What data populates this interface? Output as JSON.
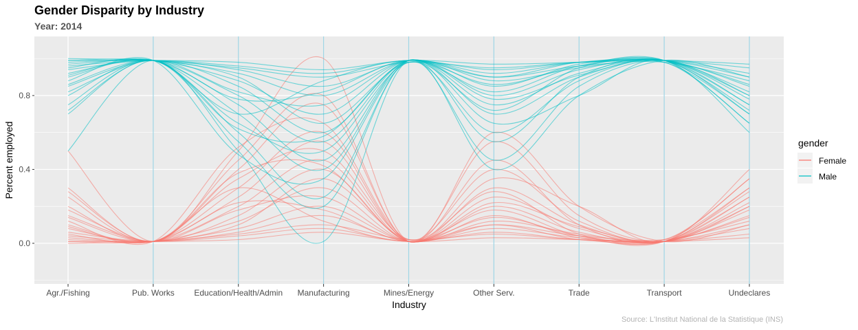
{
  "chart_data": {
    "type": "line",
    "title": "Gender Disparity by Industry",
    "subtitle": "Year: 2014",
    "xlabel": "Industry",
    "ylabel": "Percent employed",
    "caption": "Source: L'Institut National de la Statistique (INS)",
    "categories": [
      "Agr./Fishing",
      "Pub. Works",
      "Education/Health/Admin",
      "Manufacturing",
      "Mines/Energy",
      "Other Serv.",
      "Trade",
      "Transport",
      "Undeclares"
    ],
    "ylim": [
      -0.22,
      1.12
    ],
    "yticks": [
      0.0,
      0.4,
      0.8
    ],
    "grid": true,
    "legend": {
      "title": "gender",
      "position": "right",
      "entries": [
        {
          "name": "Female",
          "color": "#F8766D"
        },
        {
          "name": "Male",
          "color": "#00BFC4"
        }
      ]
    },
    "series": [
      {
        "name": "Female",
        "values": [
          0.5,
          0.01,
          0.5,
          1.0,
          0.01,
          0.6,
          0.2,
          0.01,
          0.1
        ]
      },
      {
        "name": "Female",
        "values": [
          0.3,
          0.01,
          0.45,
          0.8,
          0.01,
          0.55,
          0.15,
          0.01,
          0.2
        ]
      },
      {
        "name": "Female",
        "values": [
          0.25,
          0.01,
          0.4,
          0.75,
          0.01,
          0.45,
          0.1,
          0.01,
          0.3
        ]
      },
      {
        "name": "Female",
        "values": [
          0.12,
          0.01,
          0.52,
          0.65,
          0.02,
          0.4,
          0.12,
          0.02,
          0.35
        ]
      },
      {
        "name": "Female",
        "values": [
          0.1,
          0.01,
          0.3,
          0.6,
          0.01,
          0.35,
          0.2,
          0.01,
          0.4
        ]
      },
      {
        "name": "Female",
        "values": [
          0.05,
          0.01,
          0.25,
          0.55,
          0.01,
          0.3,
          0.1,
          0.01,
          0.25
        ]
      },
      {
        "name": "Female",
        "values": [
          0.2,
          0.01,
          0.35,
          0.5,
          0.02,
          0.28,
          0.05,
          0.01,
          0.15
        ]
      },
      {
        "name": "Female",
        "values": [
          0.08,
          0.01,
          0.2,
          0.45,
          0.01,
          0.25,
          0.08,
          0.02,
          0.3
        ]
      },
      {
        "name": "Female",
        "values": [
          0.15,
          0.01,
          0.15,
          0.4,
          0.01,
          0.2,
          0.06,
          0.01,
          0.2
        ]
      },
      {
        "name": "Female",
        "values": [
          0.03,
          0.01,
          0.1,
          0.35,
          0.02,
          0.18,
          0.04,
          0.01,
          0.35
        ]
      },
      {
        "name": "Female",
        "values": [
          0.01,
          0.01,
          0.12,
          0.3,
          0.01,
          0.15,
          0.03,
          0.01,
          0.25
        ]
      },
      {
        "name": "Female",
        "values": [
          0.18,
          0.01,
          0.18,
          0.25,
          0.01,
          0.12,
          0.05,
          0.01,
          0.18
        ]
      },
      {
        "name": "Female",
        "values": [
          0.02,
          0.01,
          0.08,
          0.2,
          0.01,
          0.1,
          0.04,
          0.02,
          0.12
        ]
      },
      {
        "name": "Female",
        "values": [
          0.06,
          0.01,
          0.06,
          0.15,
          0.01,
          0.08,
          0.03,
          0.01,
          0.1
        ]
      },
      {
        "name": "Female",
        "values": [
          0.0,
          0.01,
          0.05,
          0.1,
          0.02,
          0.05,
          0.02,
          0.01,
          0.08
        ]
      },
      {
        "name": "Female",
        "values": [
          0.04,
          0.01,
          0.04,
          0.08,
          0.01,
          0.06,
          0.02,
          0.01,
          0.05
        ]
      },
      {
        "name": "Female",
        "values": [
          0.09,
          0.01,
          0.3,
          0.12,
          0.01,
          0.1,
          0.02,
          0.01,
          0.14
        ]
      },
      {
        "name": "Female",
        "values": [
          0.14,
          0.01,
          0.22,
          0.18,
          0.01,
          0.14,
          0.04,
          0.01,
          0.28
        ]
      },
      {
        "name": "Female",
        "values": [
          0.01,
          0.01,
          0.02,
          0.06,
          0.01,
          0.03,
          0.02,
          0.01,
          0.03
        ]
      },
      {
        "name": "Female",
        "values": [
          0.28,
          0.01,
          0.38,
          0.42,
          0.01,
          0.22,
          0.09,
          0.01,
          0.22
        ]
      },
      {
        "name": "Male",
        "values": [
          0.5,
          0.99,
          0.5,
          0.01,
          0.99,
          0.4,
          0.8,
          0.99,
          0.9
        ]
      },
      {
        "name": "Male",
        "values": [
          0.7,
          0.99,
          0.55,
          0.2,
          0.99,
          0.45,
          0.85,
          0.99,
          0.8
        ]
      },
      {
        "name": "Male",
        "values": [
          0.75,
          0.99,
          0.6,
          0.25,
          0.99,
          0.55,
          0.9,
          0.99,
          0.7
        ]
      },
      {
        "name": "Male",
        "values": [
          0.88,
          0.99,
          0.48,
          0.35,
          0.98,
          0.6,
          0.88,
          0.98,
          0.65
        ]
      },
      {
        "name": "Male",
        "values": [
          0.9,
          0.99,
          0.7,
          0.4,
          0.99,
          0.65,
          0.8,
          0.99,
          0.6
        ]
      },
      {
        "name": "Male",
        "values": [
          0.95,
          0.99,
          0.75,
          0.45,
          0.99,
          0.7,
          0.9,
          0.99,
          0.75
        ]
      },
      {
        "name": "Male",
        "values": [
          0.8,
          0.99,
          0.65,
          0.5,
          0.98,
          0.72,
          0.95,
          0.99,
          0.85
        ]
      },
      {
        "name": "Male",
        "values": [
          0.92,
          0.99,
          0.8,
          0.55,
          0.99,
          0.75,
          0.92,
          0.98,
          0.7
        ]
      },
      {
        "name": "Male",
        "values": [
          0.85,
          0.99,
          0.85,
          0.6,
          0.99,
          0.8,
          0.94,
          0.99,
          0.8
        ]
      },
      {
        "name": "Male",
        "values": [
          0.97,
          0.99,
          0.9,
          0.65,
          0.98,
          0.82,
          0.96,
          0.99,
          0.65
        ]
      },
      {
        "name": "Male",
        "values": [
          0.99,
          0.99,
          0.88,
          0.7,
          0.99,
          0.85,
          0.97,
          0.99,
          0.75
        ]
      },
      {
        "name": "Male",
        "values": [
          0.82,
          0.99,
          0.82,
          0.75,
          0.99,
          0.88,
          0.95,
          0.99,
          0.82
        ]
      },
      {
        "name": "Male",
        "values": [
          0.98,
          0.99,
          0.92,
          0.8,
          0.99,
          0.9,
          0.96,
          0.98,
          0.88
        ]
      },
      {
        "name": "Male",
        "values": [
          0.94,
          0.99,
          0.94,
          0.85,
          0.99,
          0.92,
          0.98,
          0.99,
          0.9
        ]
      },
      {
        "name": "Male",
        "values": [
          1.0,
          0.99,
          0.95,
          0.9,
          0.98,
          0.95,
          0.98,
          0.99,
          0.92
        ]
      },
      {
        "name": "Male",
        "values": [
          0.96,
          0.99,
          0.96,
          0.92,
          0.99,
          0.94,
          0.98,
          0.99,
          0.95
        ]
      },
      {
        "name": "Male",
        "values": [
          0.91,
          0.99,
          0.7,
          0.88,
          0.99,
          0.9,
          0.98,
          0.99,
          0.86
        ]
      },
      {
        "name": "Male",
        "values": [
          0.86,
          0.99,
          0.78,
          0.82,
          0.99,
          0.86,
          0.96,
          0.99,
          0.72
        ]
      },
      {
        "name": "Male",
        "values": [
          0.99,
          0.99,
          0.98,
          0.94,
          0.99,
          0.97,
          0.98,
          0.99,
          0.97
        ]
      },
      {
        "name": "Male",
        "values": [
          0.72,
          0.99,
          0.62,
          0.58,
          0.99,
          0.78,
          0.91,
          0.99,
          0.78
        ]
      }
    ]
  }
}
